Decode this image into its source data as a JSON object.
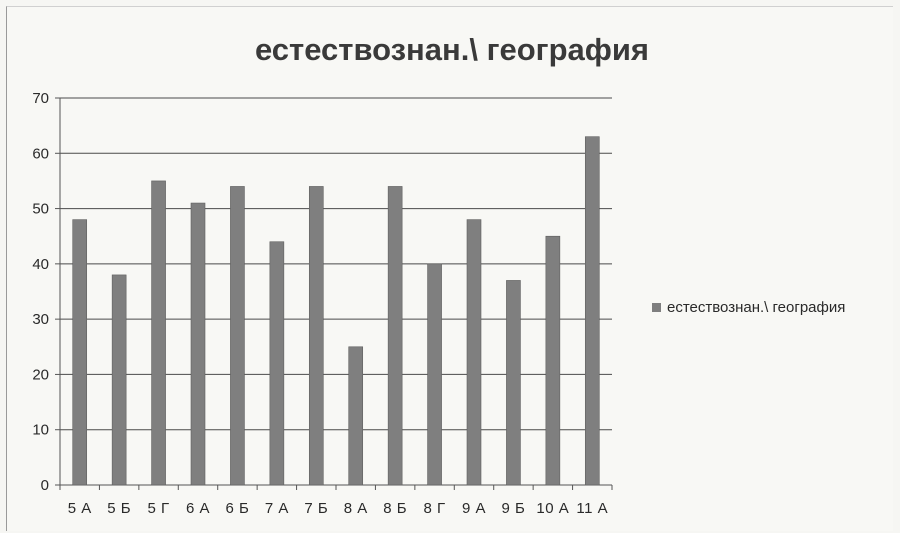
{
  "chart_data": {
    "type": "bar",
    "title": "естествознан.\\ география",
    "categories": [
      "5 А",
      "5 Б",
      "5 Г",
      "6 А",
      "6 Б",
      "7 А",
      "7 Б",
      "8 А",
      "8 Б",
      "8 Г",
      "9 А",
      "9 Б",
      "10 А",
      "11 А"
    ],
    "series": [
      {
        "name": "естествознан.\\ география",
        "values": [
          48,
          38,
          55,
          51,
          54,
          44,
          54,
          25,
          54,
          40,
          48,
          37,
          45,
          63
        ],
        "color": "#7f7f7f"
      }
    ],
    "ylim": [
      0,
      70
    ],
    "yticks": [
      0,
      10,
      20,
      30,
      40,
      50,
      60,
      70
    ],
    "grid": true,
    "legend": "right"
  }
}
